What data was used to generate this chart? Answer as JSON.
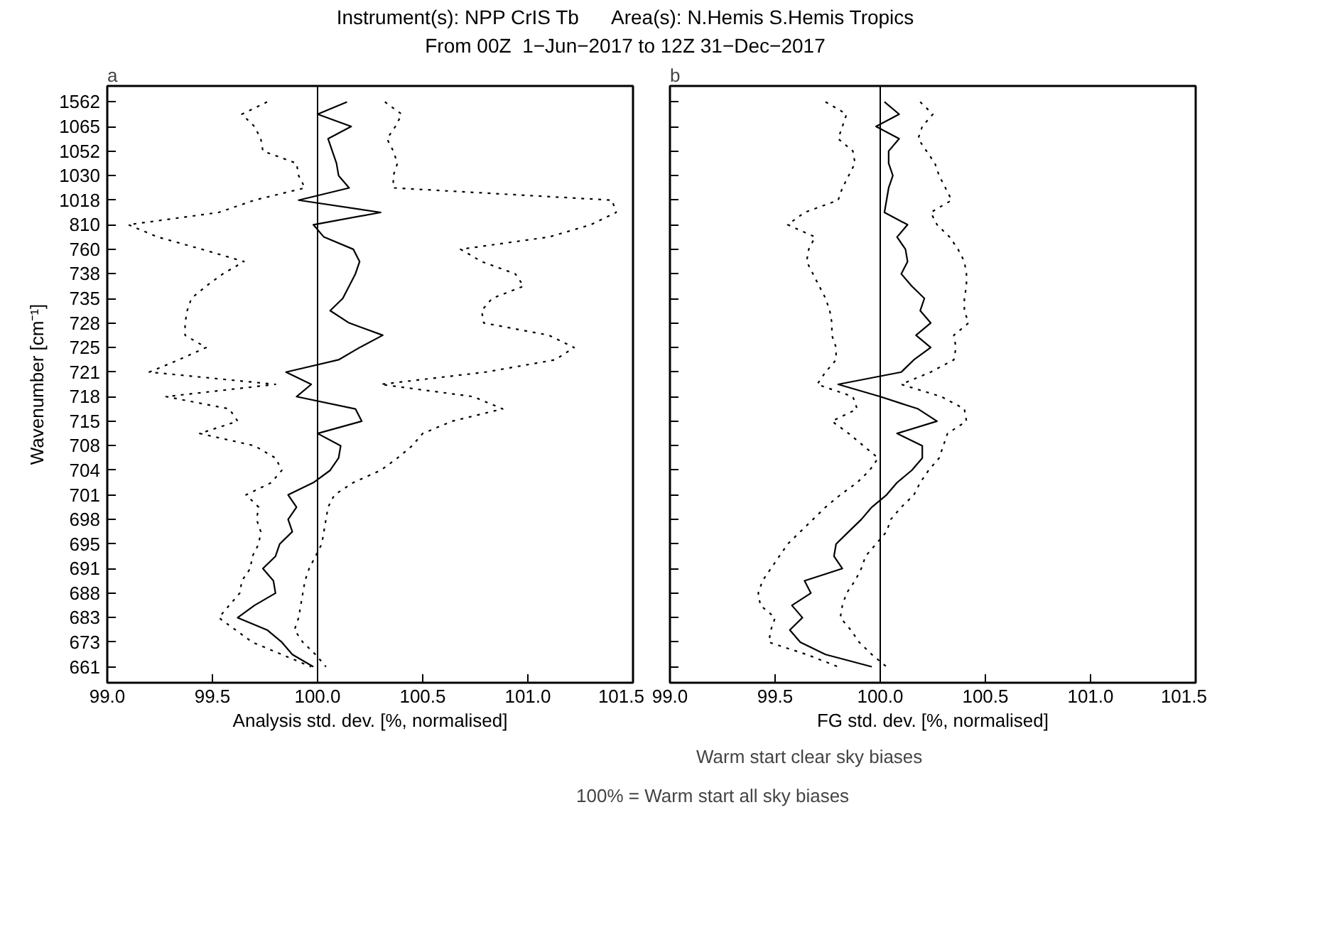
{
  "chart_data": [
    {
      "type": "line",
      "orientation": "horizontal",
      "title": "Instrument(s): NPP CrIS Tb      Area(s): N.Hemis S.Hemis Tropics",
      "subtitle": "From 00Z  1−Jun−2017 to 12Z 31−Dec−2017",
      "xlabel": "Analysis std. dev. [%, normalised]",
      "ylabel": "Wavenumber [cm⁻¹]",
      "annotations": [
        "a",
        "100% =      Warm start all sky biases"
      ],
      "legend": "bottom",
      "grid": false,
      "xlim": [
        99.0,
        101.5
      ],
      "xticks": [
        {
          "value": 99.0,
          "label": "99.0"
        },
        {
          "value": 99.5,
          "label": "99.5"
        },
        {
          "value": 100.0,
          "label": "100.0"
        },
        {
          "value": 100.5,
          "label": "100.5"
        },
        {
          "value": 101.0,
          "label": "101.0"
        },
        {
          "value": 101.5,
          "label": "101.5"
        }
      ],
      "categories": [
        "1562",
        null,
        "1065",
        null,
        "1052",
        null,
        "1030",
        null,
        "1018",
        null,
        "810",
        null,
        "760",
        null,
        "738",
        null,
        "735",
        null,
        "728",
        null,
        "725",
        null,
        "721",
        null,
        "718",
        null,
        "715",
        null,
        "708",
        null,
        "704",
        null,
        "701",
        null,
        "698",
        null,
        "695",
        null,
        "691",
        null,
        "688",
        null,
        "683",
        null,
        "673",
        null,
        "661"
      ],
      "ref_lines": [
        {
          "axis": "x",
          "value": 100.0,
          "color": "#000000"
        }
      ],
      "series": [
        {
          "name": "Warm start clear sky biases",
          "color": "#000000",
          "line_style": "solid",
          "values": [
            100.14,
            100.0,
            100.16,
            100.05,
            100.07,
            100.09,
            100.1,
            100.15,
            99.91,
            100.3,
            99.98,
            100.03,
            100.17,
            100.2,
            100.18,
            100.15,
            100.12,
            100.06,
            100.15,
            100.31,
            100.2,
            100.1,
            99.85,
            99.97,
            99.9,
            100.18,
            100.21,
            100.0,
            100.11,
            100.1,
            100.06,
            99.98,
            99.86,
            99.9,
            99.86,
            99.88,
            99.82,
            99.8,
            99.74,
            99.79,
            99.8,
            99.7,
            99.62,
            99.76,
            99.83,
            99.88,
            99.98
          ]
        },
        {
          "color": "#000000",
          "line_style": "dotted",
          "values": [
            99.76,
            99.64,
            99.7,
            99.73,
            99.74,
            99.9,
            99.91,
            99.94,
            99.7,
            99.53,
            99.1,
            99.24,
            99.45,
            99.65,
            99.55,
            99.47,
            99.4,
            99.38,
            99.37,
            99.37,
            99.47,
            99.34,
            99.2,
            99.8,
            99.28,
            99.58,
            99.62,
            99.44,
            99.7,
            99.8,
            99.83,
            99.78,
            99.66,
            99.72,
            99.71,
            99.73,
            99.72,
            99.69,
            99.68,
            99.64,
            99.63,
            99.58,
            99.53,
            99.61,
            99.69,
            99.83,
            99.97
          ]
        },
        {
          "color": "#000000",
          "line_style": "dotted",
          "values": [
            100.32,
            100.4,
            100.37,
            100.33,
            100.36,
            100.38,
            100.36,
            100.36,
            101.4,
            101.42,
            101.3,
            101.1,
            100.68,
            100.78,
            100.94,
            100.98,
            100.83,
            100.78,
            100.79,
            101.1,
            101.22,
            101.13,
            100.8,
            100.3,
            100.74,
            100.88,
            100.64,
            100.5,
            100.45,
            100.38,
            100.3,
            100.17,
            100.08,
            100.05,
            100.04,
            100.03,
            100.02,
            99.99,
            99.96,
            99.94,
            99.93,
            99.92,
            99.91,
            99.89,
            99.93,
            99.99,
            100.04
          ]
        }
      ]
    },
    {
      "type": "line",
      "orientation": "horizontal",
      "xlabel": "FG std. dev. [%, normalised]",
      "annotations": [
        "b"
      ],
      "grid": false,
      "tick_labels": "x",
      "xlim": [
        99.0,
        101.5
      ],
      "xticks": [
        {
          "value": 99.0,
          "label": "99.0"
        },
        {
          "value": 99.5,
          "label": "99.5"
        },
        {
          "value": 100.0,
          "label": "100.0"
        },
        {
          "value": 100.5,
          "label": "100.5"
        },
        {
          "value": 101.0,
          "label": "101.0"
        },
        {
          "value": 101.5,
          "label": "101.5"
        }
      ],
      "categories": [
        "1562",
        null,
        "1065",
        null,
        "1052",
        null,
        "1030",
        null,
        "1018",
        null,
        "810",
        null,
        "760",
        null,
        "738",
        null,
        "735",
        null,
        "728",
        null,
        "725",
        null,
        "721",
        null,
        "718",
        null,
        "715",
        null,
        "708",
        null,
        "704",
        null,
        "701",
        null,
        "698",
        null,
        "695",
        null,
        "691",
        null,
        "688",
        null,
        "683",
        null,
        "673",
        null,
        "661"
      ],
      "ref_lines": [
        {
          "axis": "x",
          "value": 100.0,
          "color": "#000000"
        }
      ],
      "series": [
        {
          "color": "#000000",
          "line_style": "solid",
          "values": [
            100.02,
            100.09,
            99.98,
            100.09,
            100.04,
            100.04,
            100.06,
            100.04,
            100.03,
            100.02,
            100.13,
            100.08,
            100.12,
            100.13,
            100.1,
            100.15,
            100.21,
            100.19,
            100.24,
            100.17,
            100.24,
            100.16,
            100.1,
            99.8,
            100.0,
            100.18,
            100.27,
            100.08,
            100.2,
            100.2,
            100.15,
            100.08,
            100.03,
            99.96,
            99.91,
            99.85,
            99.79,
            99.78,
            99.82,
            99.64,
            99.67,
            99.58,
            99.63,
            99.57,
            99.62,
            99.74,
            99.96
          ]
        },
        {
          "color": "#000000",
          "line_style": "dotted",
          "values": [
            99.74,
            99.84,
            99.82,
            99.8,
            99.87,
            99.88,
            99.85,
            99.82,
            99.8,
            99.64,
            99.56,
            99.69,
            99.66,
            99.65,
            99.68,
            99.71,
            99.74,
            99.76,
            99.77,
            99.77,
            99.79,
            99.79,
            99.74,
            99.7,
            99.87,
            99.89,
            99.77,
            99.85,
            99.92,
            99.99,
            99.95,
            99.89,
            99.81,
            99.74,
            99.68,
            99.62,
            99.56,
            99.52,
            99.48,
            99.44,
            99.42,
            99.43,
            99.5,
            99.48,
            99.47,
            99.65,
            99.8
          ]
        },
        {
          "color": "#000000",
          "line_style": "dotted",
          "values": [
            100.19,
            100.25,
            100.2,
            100.18,
            100.22,
            100.26,
            100.28,
            100.31,
            100.34,
            100.24,
            100.27,
            100.33,
            100.37,
            100.4,
            100.41,
            100.41,
            100.4,
            100.4,
            100.42,
            100.35,
            100.36,
            100.35,
            100.24,
            100.1,
            100.29,
            100.4,
            100.41,
            100.32,
            100.3,
            100.28,
            100.23,
            100.19,
            100.16,
            100.1,
            100.05,
            100.03,
            99.98,
            99.93,
            99.91,
            99.88,
            99.84,
            99.82,
            99.81,
            99.86,
            99.9,
            99.96,
            100.03
          ]
        }
      ]
    }
  ]
}
